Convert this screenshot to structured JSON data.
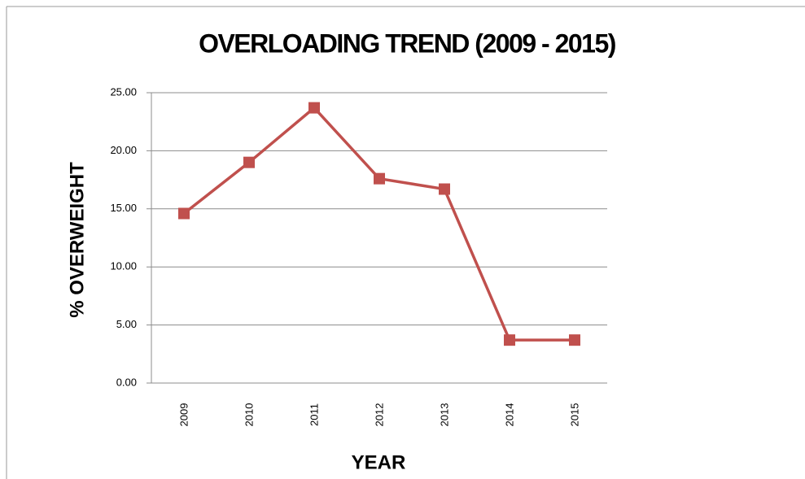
{
  "chart_data": {
    "type": "line",
    "title": "OVERLOADING TREND (2009 - 2015)",
    "x_label": "YEAR",
    "y_label": "% OVERWEIGHT",
    "categories": [
      "2009",
      "2010",
      "2011",
      "2012",
      "2013",
      "2014",
      "2015"
    ],
    "series": [
      {
        "name": "% OVERWEIGHT",
        "color": "#c0504d",
        "values": [
          14.6,
          19.0,
          23.7,
          17.6,
          16.7,
          3.7,
          3.7
        ]
      }
    ],
    "ylim": [
      0,
      25
    ],
    "yticks": [
      {
        "value": 0,
        "label": "0.00"
      },
      {
        "value": 5,
        "label": "5.00"
      },
      {
        "value": 10,
        "label": "10.00"
      },
      {
        "value": 15,
        "label": "15.00"
      },
      {
        "value": 20,
        "label": "20.00"
      },
      {
        "value": 25,
        "label": "25.00"
      }
    ],
    "grid": true
  }
}
